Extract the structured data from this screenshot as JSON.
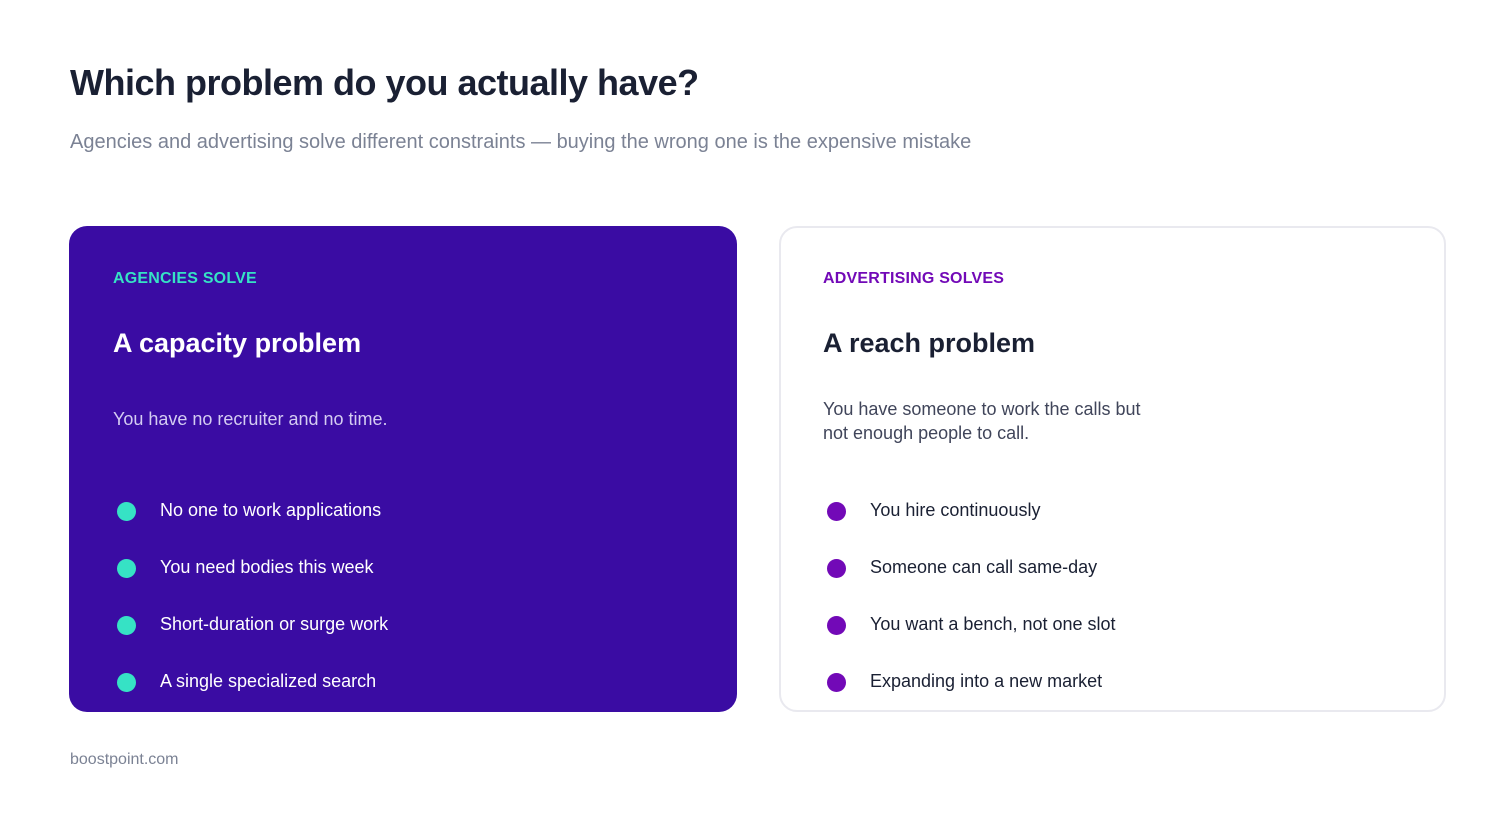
{
  "header": {
    "title": "Which problem do you actually have?",
    "subtitle": "Agencies and advertising solve different constraints — buying the wrong one is the expensive mistake"
  },
  "cards": [
    {
      "eyebrow": "AGENCIES SOLVE",
      "heading": "A capacity problem",
      "description": "You have no recruiter and no time.",
      "items": [
        "No one to work applications",
        "You need bodies this week",
        "Short-duration or surge work",
        "A single specialized search"
      ]
    },
    {
      "eyebrow": "ADVERTISING SOLVES",
      "heading": "A reach problem",
      "description": "You have someone to work the calls but not enough people to call.",
      "items": [
        "You hire continuously",
        "Someone can call same-day",
        "You want a bench, not one slot",
        "Expanding into a new market"
      ]
    }
  ],
  "footer": {
    "site": "boostpoint.com"
  },
  "colors": {
    "left_card_bg": "#3a0ca3",
    "left_accent": "#36e2c5",
    "right_accent": "#7209b7",
    "title_text": "#1a2033",
    "muted_text": "#7b8294"
  },
  "icons": {
    "bullet": "filled-circle-icon"
  }
}
